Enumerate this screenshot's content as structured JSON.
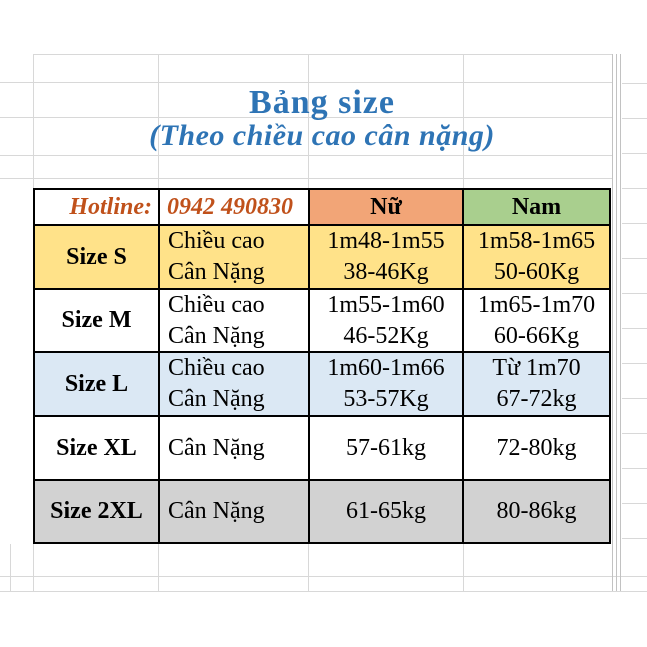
{
  "header": {
    "title": "Bảng size",
    "subtitle": "(Theo chiều cao cân nặng)",
    "title_color": "#2E74B5"
  },
  "hotline": {
    "label": "Hotline:",
    "number": "0942 490830",
    "color": "#C0511B"
  },
  "table": {
    "female_header": "Nữ",
    "male_header": "Nam",
    "colors": {
      "female_header_bg": "#F2A577",
      "male_header_bg": "#A9CF8E",
      "row_s_bg": "#FFE289",
      "row_m_bg": "#FFFFFF",
      "row_l_bg": "#DBE8F4",
      "row_xl_bg": "#FFFFFF",
      "row_2xl_bg": "#D2D2D2",
      "border": "#000000",
      "gridline": "#D8D8D8"
    },
    "rows": [
      {
        "size": "Size S",
        "metric_line1": "Chiều cao",
        "metric_line2": "Cân Nặng",
        "female_line1": "1m48-1m55",
        "female_line2": "38-46Kg",
        "male_line1": "1m58-1m65",
        "male_line2": "50-60Kg",
        "bg": "#FFE289"
      },
      {
        "size": "Size M",
        "metric_line1": "Chiều cao",
        "metric_line2": "Cân Nặng",
        "female_line1": "1m55-1m60",
        "female_line2": "46-52Kg",
        "male_line1": "1m65-1m70",
        "male_line2": "60-66Kg",
        "bg": "#FFFFFF"
      },
      {
        "size": "Size L",
        "metric_line1": "Chiều cao",
        "metric_line2": "Cân Nặng",
        "female_line1": "1m60-1m66",
        "female_line2": "53-57Kg",
        "male_line1": "Từ 1m70",
        "male_line2": "67-72kg",
        "bg": "#DBE8F4"
      },
      {
        "size": "Size XL",
        "metric_line1": "Cân Nặng",
        "metric_line2": "",
        "female_line1": "57-61kg",
        "female_line2": "",
        "male_line1": "72-80kg",
        "male_line2": "",
        "bg": "#FFFFFF"
      },
      {
        "size": "Size 2XL",
        "metric_line1": "Cân Nặng",
        "metric_line2": "",
        "female_line1": "61-65kg",
        "female_line2": "",
        "male_line1": "80-86kg",
        "male_line2": "",
        "bg": "#D2D2D2"
      }
    ]
  }
}
